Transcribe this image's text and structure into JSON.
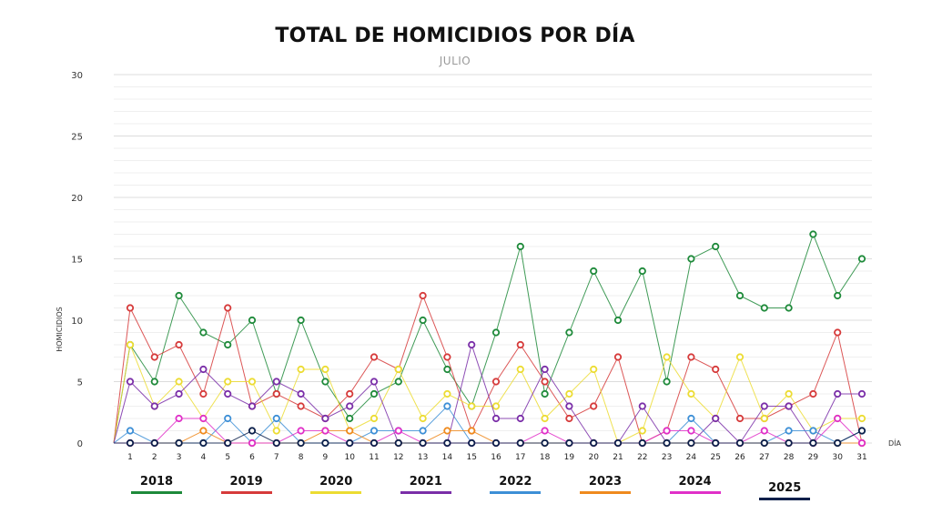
{
  "chart_data": {
    "type": "line",
    "title": "TOTAL DE HOMICIDIOS POR DÍA",
    "subtitle": "JULIO",
    "xlabel": "DÍA",
    "ylabel": "HOMICIDIOS",
    "ylim": [
      0,
      30
    ],
    "yticks": [
      0,
      5,
      10,
      15,
      20,
      25,
      30
    ],
    "x": [
      1,
      2,
      3,
      4,
      5,
      6,
      7,
      8,
      9,
      10,
      11,
      12,
      13,
      14,
      15,
      16,
      17,
      18,
      19,
      20,
      21,
      22,
      23,
      24,
      25,
      26,
      27,
      28,
      29,
      30,
      31
    ],
    "grid": true,
    "legend_position": "bottom",
    "series": [
      {
        "name": "2018",
        "color": "#1e8a3a",
        "values": [
          8,
          5,
          12,
          9,
          8,
          10,
          4,
          10,
          5,
          2,
          4,
          5,
          10,
          6,
          3,
          9,
          16,
          4,
          9,
          14,
          10,
          14,
          5,
          15,
          16,
          12,
          11,
          11,
          17,
          12,
          15
        ]
      },
      {
        "name": "2019",
        "color": "#d63a3a",
        "values": [
          11,
          7,
          8,
          4,
          11,
          3,
          4,
          3,
          2,
          4,
          7,
          6,
          12,
          7,
          1,
          5,
          8,
          5,
          2,
          3,
          7,
          0,
          1,
          7,
          6,
          2,
          2,
          3,
          4,
          9,
          0
        ]
      },
      {
        "name": "2020",
        "color": "#ecdc32",
        "values": [
          8,
          3,
          5,
          2,
          5,
          5,
          1,
          6,
          6,
          1,
          2,
          6,
          2,
          4,
          3,
          3,
          6,
          2,
          4,
          6,
          0,
          1,
          7,
          4,
          2,
          7,
          2,
          4,
          1,
          2,
          2
        ]
      },
      {
        "name": "2021",
        "color": "#7a2ea8",
        "values": [
          5,
          3,
          4,
          6,
          4,
          3,
          5,
          4,
          2,
          3,
          5,
          0,
          0,
          0,
          8,
          2,
          2,
          6,
          3,
          0,
          0,
          3,
          0,
          0,
          2,
          0,
          3,
          3,
          0,
          4,
          4
        ]
      },
      {
        "name": "2022",
        "color": "#3d8fd6",
        "values": [
          1,
          0,
          0,
          0,
          2,
          0,
          2,
          0,
          0,
          0,
          1,
          1,
          1,
          3,
          0,
          0,
          0,
          0,
          0,
          0,
          0,
          0,
          0,
          2,
          0,
          0,
          0,
          1,
          1,
          0,
          1
        ]
      },
      {
        "name": "2023",
        "color": "#ef8a1e",
        "values": [
          0,
          0,
          0,
          1,
          0,
          0,
          0,
          0,
          1,
          1,
          0,
          0,
          0,
          1,
          1,
          0,
          0,
          0,
          0,
          0,
          0,
          0,
          0,
          0,
          0,
          0,
          0,
          0,
          0,
          0,
          0
        ]
      },
      {
        "name": "2024",
        "color": "#e030c8",
        "values": [
          0,
          0,
          2,
          2,
          0,
          0,
          0,
          1,
          1,
          0,
          0,
          1,
          0,
          0,
          0,
          0,
          0,
          1,
          0,
          0,
          0,
          0,
          1,
          1,
          0,
          0,
          1,
          0,
          0,
          2,
          0
        ]
      },
      {
        "name": "2025",
        "color": "#0b1f4a",
        "values": [
          0,
          0,
          0,
          0,
          0,
          1,
          0,
          0,
          0,
          0,
          0,
          0,
          0,
          0,
          0,
          0,
          0,
          0,
          0,
          0,
          0,
          0,
          0,
          0,
          0,
          0,
          0,
          0,
          0,
          0,
          1
        ]
      }
    ]
  }
}
